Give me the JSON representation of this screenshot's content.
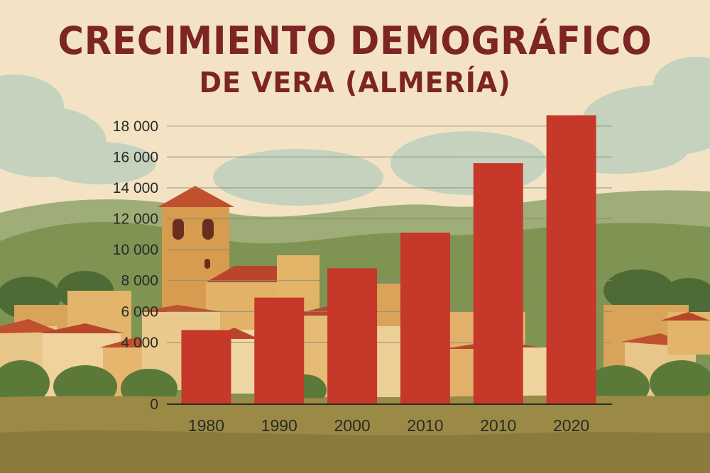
{
  "title_line1": "CRECIMIENTO DEMOGRÁFICO",
  "title_line2": "DE VERA (ALMERÍA)",
  "colors": {
    "bar": "#c5382a",
    "title": "#7d2424",
    "gridline": "#8a8f7a",
    "axis": "#2b2a25",
    "sky": "#f3e3c4"
  },
  "chart_data": {
    "type": "bar",
    "title": "CRECIMIENTO DEMOGRÁFICO DE VERA (ALMERÍA)",
    "xlabel": "",
    "ylabel": "",
    "categories": [
      "1980",
      "1990",
      "2000",
      "2010",
      "2010",
      "2020"
    ],
    "values": [
      4800,
      6900,
      8800,
      11100,
      15600,
      18700
    ],
    "ylim": [
      0,
      19000
    ],
    "yticks": [
      0,
      4000,
      6000,
      8000,
      10000,
      12000,
      14000,
      16000,
      18000
    ],
    "ytick_labels": [
      "0",
      "4 000",
      "6 000",
      "8 000",
      "10 000",
      "12 000",
      "14 000",
      "16 000",
      "18 000"
    ],
    "grid": true,
    "legend": "none"
  }
}
